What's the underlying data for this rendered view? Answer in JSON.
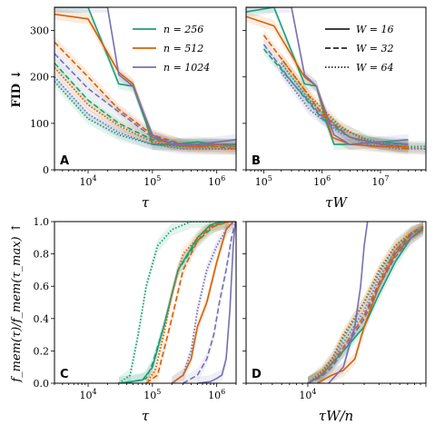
{
  "colors": {
    "n256": "#1b9e77",
    "n512": "#d95f02",
    "n1024": "#7570b3"
  },
  "legend_n": [
    "n = 256",
    "n = 512",
    "n = 1024"
  ],
  "legend_w": [
    "W = 16",
    "W = 32",
    "W = 64"
  ],
  "chart_data": [
    {
      "id": "A",
      "type": "line",
      "panel_label": "A",
      "ylabel": "FID ↓",
      "xlabel": "τ",
      "xscale": "log",
      "xlim": [
        3000,
        2000000
      ],
      "ylim": [
        0,
        350
      ],
      "yticks": [
        "0",
        "100",
        "200",
        "300"
      ],
      "xticks": [
        "10^4",
        "10^5",
        "10^6"
      ],
      "series": [
        {
          "n": 256,
          "W": 16,
          "x": [
            3000,
            10000,
            30000,
            50000,
            80000,
            100000,
            200000,
            500000,
            1000000,
            2000000
          ],
          "y": [
            350,
            350,
            185,
            180,
            100,
            55,
            55,
            60,
            55,
            55
          ]
        },
        {
          "n": 256,
          "W": 32,
          "x": [
            3000,
            10000,
            30000,
            100000,
            300000,
            1000000,
            2000000
          ],
          "y": [
            230,
            150,
            100,
            65,
            55,
            55,
            55
          ]
        },
        {
          "n": 256,
          "W": 64,
          "x": [
            3000,
            10000,
            30000,
            100000,
            300000,
            1000000,
            2000000
          ],
          "y": [
            190,
            110,
            75,
            55,
            50,
            50,
            50
          ]
        },
        {
          "n": 512,
          "W": 16,
          "x": [
            3000,
            10000,
            30000,
            50000,
            100000,
            200000,
            500000,
            1000000,
            2000000
          ],
          "y": [
            335,
            325,
            210,
            185,
            70,
            55,
            50,
            55,
            50
          ]
        },
        {
          "n": 512,
          "W": 32,
          "x": [
            3000,
            10000,
            30000,
            100000,
            300000,
            1000000,
            2000000
          ],
          "y": [
            275,
            200,
            130,
            75,
            55,
            50,
            45
          ]
        },
        {
          "n": 512,
          "W": 64,
          "x": [
            3000,
            10000,
            30000,
            100000,
            300000,
            1000000,
            2000000
          ],
          "y": [
            220,
            140,
            95,
            60,
            50,
            45,
            45
          ]
        },
        {
          "n": 1024,
          "W": 16,
          "x": [
            3000,
            10000,
            20000,
            30000,
            50000,
            100000,
            200000,
            500000,
            1000000,
            2000000
          ],
          "y": [
            350,
            350,
            350,
            205,
            180,
            75,
            55,
            55,
            60,
            65
          ]
        },
        {
          "n": 1024,
          "W": 32,
          "x": [
            3000,
            10000,
            30000,
            100000,
            300000,
            1000000,
            2000000
          ],
          "y": [
            250,
            175,
            125,
            70,
            55,
            55,
            55
          ]
        },
        {
          "n": 1024,
          "W": 64,
          "x": [
            3000,
            10000,
            30000,
            100000,
            300000,
            1000000,
            2000000
          ],
          "y": [
            200,
            120,
            80,
            55,
            45,
            45,
            45
          ]
        }
      ]
    },
    {
      "id": "B",
      "type": "line",
      "panel_label": "B",
      "xlabel": "τW",
      "xscale": "log",
      "xlim": [
        50000,
        60000000
      ],
      "ylim": [
        0,
        350
      ],
      "xticks": [
        "10^5",
        "10^6",
        "10^7"
      ],
      "series": [
        {
          "n": 256,
          "W": 16,
          "x": [
            50000,
            150000,
            500000,
            800000,
            1200000,
            1600000,
            3000000,
            10000000,
            30000000
          ],
          "y": [
            340,
            350,
            185,
            180,
            100,
            55,
            55,
            60,
            55
          ]
        },
        {
          "n": 256,
          "W": 32,
          "x": [
            100000,
            300000,
            1000000,
            3000000,
            10000000,
            30000000
          ],
          "y": [
            260,
            190,
            110,
            70,
            55,
            50
          ]
        },
        {
          "n": 256,
          "W": 64,
          "x": [
            200000,
            600000,
            2000000,
            6000000,
            20000000,
            60000000
          ],
          "y": [
            230,
            150,
            90,
            65,
            50,
            50
          ]
        },
        {
          "n": 512,
          "W": 16,
          "x": [
            50000,
            150000,
            500000,
            800000,
            1500000,
            3000000,
            10000000,
            30000000
          ],
          "y": [
            330,
            310,
            200,
            180,
            70,
            55,
            50,
            50
          ]
        },
        {
          "n": 512,
          "W": 32,
          "x": [
            100000,
            300000,
            1000000,
            3000000,
            10000000,
            30000000
          ],
          "y": [
            290,
            210,
            120,
            70,
            55,
            45
          ]
        },
        {
          "n": 512,
          "W": 64,
          "x": [
            200000,
            600000,
            2000000,
            6000000,
            20000000,
            60000000
          ],
          "y": [
            240,
            160,
            95,
            60,
            50,
            45
          ]
        },
        {
          "n": 1024,
          "W": 16,
          "x": [
            50000,
            150000,
            300000,
            500000,
            800000,
            1600000,
            3000000,
            10000000,
            30000000
          ],
          "y": [
            350,
            350,
            350,
            205,
            180,
            75,
            55,
            60,
            65
          ]
        },
        {
          "n": 1024,
          "W": 32,
          "x": [
            100000,
            300000,
            1000000,
            3000000,
            10000000,
            30000000
          ],
          "y": [
            270,
            190,
            115,
            70,
            55,
            55
          ]
        },
        {
          "n": 1024,
          "W": 64,
          "x": [
            200000,
            600000,
            2000000,
            6000000,
            20000000,
            60000000
          ],
          "y": [
            210,
            130,
            80,
            55,
            45,
            45
          ]
        }
      ]
    },
    {
      "id": "C",
      "type": "line",
      "panel_label": "C",
      "ylabel": "f_mem(τ)/f_mem(τ_max) ↑",
      "xlabel": "τ",
      "xscale": "log",
      "xlim": [
        3000,
        2000000
      ],
      "ylim": [
        0,
        1.0
      ],
      "yticks": [
        "0.0",
        "0.2",
        "0.4",
        "0.6",
        "0.8",
        "1.0"
      ],
      "xticks": [
        "10^4",
        "10^5",
        "10^6"
      ],
      "series": [
        {
          "n": 256,
          "W": 16,
          "x": [
            30000,
            70000,
            100000,
            150000,
            250000,
            500000,
            800000,
            1200000,
            1800000
          ],
          "y": [
            0,
            0.02,
            0.1,
            0.35,
            0.7,
            0.9,
            0.98,
            1.0,
            1.0
          ]
        },
        {
          "n": 256,
          "W": 32,
          "x": [
            40000,
            80000,
            100000,
            150000,
            250000,
            500000,
            900000,
            1500000
          ],
          "y": [
            0,
            0.03,
            0.12,
            0.35,
            0.7,
            0.88,
            0.97,
            1.0
          ]
        },
        {
          "n": 256,
          "W": 64,
          "x": [
            30000,
            45000,
            60000,
            80000,
            120000,
            200000,
            400000,
            800000
          ],
          "y": [
            0,
            0.05,
            0.3,
            0.6,
            0.85,
            0.95,
            1.0,
            1.0
          ]
        },
        {
          "n": 512,
          "W": 16,
          "x": [
            200000,
            300000,
            400000,
            500000,
            700000,
            1000000,
            1400000,
            1800000
          ],
          "y": [
            0,
            0.05,
            0.15,
            0.35,
            0.5,
            0.75,
            0.95,
            1.0
          ]
        },
        {
          "n": 512,
          "W": 32,
          "x": [
            80000,
            120000,
            150000,
            200000,
            300000,
            500000,
            800000,
            1500000
          ],
          "y": [
            0,
            0.05,
            0.2,
            0.4,
            0.7,
            0.88,
            0.97,
            1.0
          ]
        },
        {
          "n": 512,
          "W": 64,
          "x": [
            80000,
            110000,
            150000,
            200000,
            300000,
            600000,
            1000000,
            1600000
          ],
          "y": [
            0,
            0.08,
            0.3,
            0.55,
            0.8,
            0.93,
            0.98,
            1.0
          ]
        },
        {
          "n": 1024,
          "W": 16,
          "x": [
            500000,
            800000,
            1000000,
            1200000,
            1400000,
            1600000,
            1800000,
            1950000
          ],
          "y": [
            0,
            0.01,
            0.03,
            0.05,
            0.15,
            0.45,
            0.85,
            1.0
          ]
        },
        {
          "n": 1024,
          "W": 32,
          "x": [
            300000,
            500000,
            700000,
            900000,
            1100000,
            1400000,
            1700000,
            1950000
          ],
          "y": [
            0,
            0.05,
            0.15,
            0.3,
            0.5,
            0.7,
            0.9,
            1.0
          ]
        },
        {
          "n": 1024,
          "W": 64,
          "x": [
            200000,
            300000,
            400000,
            500000,
            700000,
            1000000,
            1500000,
            1950000
          ],
          "y": [
            0,
            0.05,
            0.2,
            0.45,
            0.7,
            0.85,
            0.97,
            1.0
          ]
        }
      ]
    },
    {
      "id": "D",
      "type": "line",
      "panel_label": "D",
      "xlabel": "τW/n",
      "xscale": "log",
      "xlim": [
        3000,
        100000
      ],
      "ylim": [
        0,
        1.0
      ],
      "xticks": [
        "10^4"
      ],
      "series": [
        {
          "n": 256,
          "W": 16,
          "x": [
            10000,
            13000,
            16000,
            20000,
            30000,
            40000,
            55000,
            75000,
            95000
          ],
          "y": [
            0,
            0.05,
            0.12,
            0.2,
            0.35,
            0.55,
            0.75,
            0.9,
            0.96
          ]
        },
        {
          "n": 256,
          "W": 32,
          "x": [
            10000,
            13000,
            16000,
            20000,
            30000,
            40000,
            55000,
            75000,
            95000
          ],
          "y": [
            0,
            0.04,
            0.1,
            0.2,
            0.4,
            0.6,
            0.8,
            0.92,
            0.97
          ]
        },
        {
          "n": 256,
          "W": 64,
          "x": [
            10000,
            13000,
            16000,
            20000,
            30000,
            40000,
            55000,
            75000,
            95000
          ],
          "y": [
            0,
            0.06,
            0.15,
            0.28,
            0.5,
            0.68,
            0.85,
            0.93,
            0.97
          ]
        },
        {
          "n": 512,
          "W": 16,
          "x": [
            12000,
            16000,
            20000,
            25000,
            30000,
            40000,
            55000,
            75000,
            95000
          ],
          "y": [
            0,
            0.05,
            0.08,
            0.15,
            0.35,
            0.6,
            0.8,
            0.9,
            0.95
          ]
        },
        {
          "n": 512,
          "W": 32,
          "x": [
            10000,
            13000,
            16000,
            20000,
            30000,
            40000,
            55000,
            75000,
            95000
          ],
          "y": [
            0,
            0.05,
            0.12,
            0.22,
            0.42,
            0.62,
            0.82,
            0.93,
            0.97
          ]
        },
        {
          "n": 512,
          "W": 64,
          "x": [
            10000,
            13000,
            16000,
            20000,
            30000,
            40000,
            55000,
            75000,
            95000
          ],
          "y": [
            0,
            0.07,
            0.15,
            0.3,
            0.5,
            0.7,
            0.85,
            0.93,
            0.97
          ]
        },
        {
          "n": 1024,
          "W": 16,
          "x": [
            15000,
            20000,
            25000,
            28000,
            30000,
            32000
          ],
          "y": [
            0,
            0.1,
            0.35,
            0.6,
            0.85,
            1.0
          ]
        },
        {
          "n": 1024,
          "W": 32,
          "x": [
            10000,
            13000,
            16000,
            20000,
            30000,
            40000,
            55000,
            75000,
            95000
          ],
          "y": [
            0,
            0.04,
            0.1,
            0.2,
            0.4,
            0.6,
            0.78,
            0.9,
            0.95
          ]
        },
        {
          "n": 1024,
          "W": 64,
          "x": [
            10000,
            13000,
            16000,
            20000,
            30000,
            40000,
            55000,
            75000,
            95000
          ],
          "y": [
            0,
            0.05,
            0.13,
            0.25,
            0.45,
            0.65,
            0.82,
            0.92,
            0.96
          ]
        }
      ]
    }
  ]
}
